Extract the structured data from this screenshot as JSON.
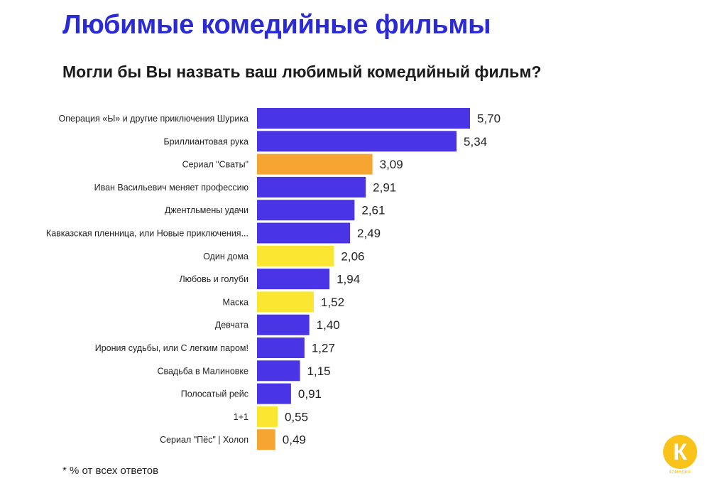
{
  "header": {
    "title": "Любимые комедийные фильмы",
    "subtitle": "Могли бы Вы назвать ваш любимый комедийный фильм?"
  },
  "footnote": "* % от всех ответов",
  "logo": {
    "letter": "К",
    "caption": "комедия"
  },
  "colors": {
    "primary": "#4a35e6",
    "orange": "#f6a532",
    "yellow": "#fbe732",
    "title": "#2b2bd6",
    "logo": "#f9c31a"
  },
  "chart_data": {
    "type": "bar",
    "orientation": "horizontal",
    "title": "Могли бы Вы назвать ваш любимый комедийный фильм?",
    "xlim": [
      0,
      5.7
    ],
    "grid": false,
    "legend": "none",
    "categories": [
      "Операция «Ы» и другие приключения Шурика",
      "Бриллиантовая рука",
      "Сериал \"Сваты\"",
      "Иван Васильевич меняет профессию",
      "Джентльмены удачи",
      "Кавказская пленница, или Новые приключения...",
      "Один дома",
      "Любовь и голуби",
      "Маска",
      "Девчата",
      "Ирония судьбы, или С легким паром!",
      "Свадьба в Малиновке",
      "Полосатый рейс",
      "1+1",
      "Сериал \"Пёс\" | Холоп"
    ],
    "values": [
      5.7,
      5.34,
      3.09,
      2.91,
      2.61,
      2.49,
      2.06,
      1.94,
      1.52,
      1.4,
      1.27,
      1.15,
      0.91,
      0.55,
      0.49
    ],
    "value_labels": [
      "5,70",
      "5,34",
      "3,09",
      "2,91",
      "2,61",
      "2,49",
      "2,06",
      "1,94",
      "1,52",
      "1,40",
      "1,27",
      "1,15",
      "0,91",
      "0,55",
      "0,49"
    ],
    "bar_colors": [
      "primary",
      "primary",
      "orange",
      "primary",
      "primary",
      "primary",
      "yellow",
      "primary",
      "yellow",
      "primary",
      "primary",
      "primary",
      "primary",
      "yellow",
      "orange"
    ]
  }
}
